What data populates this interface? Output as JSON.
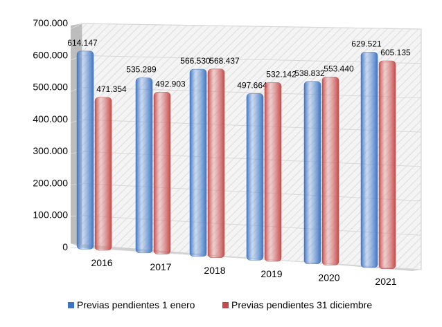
{
  "chart_data": {
    "type": "bar",
    "categories": [
      "2016",
      "2017",
      "2018",
      "2019",
      "2020",
      "2021"
    ],
    "series": [
      {
        "name": "Previas pendientes 1 enero",
        "color": "#3d74c4",
        "values": [
          614147,
          535289,
          566530,
          497664,
          538832,
          629521
        ],
        "labels": [
          "614.147",
          "535.289",
          "566.530",
          "497.664",
          "538.832",
          "629.521"
        ]
      },
      {
        "name": "Previas pendientes 31 diciembre",
        "color": "#c44a48",
        "values": [
          471354,
          492903,
          568437,
          532142,
          553440,
          605135
        ],
        "labels": [
          "471.354",
          "492.903",
          "568.437",
          "532.142",
          "553.440",
          "605.135"
        ]
      }
    ],
    "ylim": [
      0,
      700000
    ],
    "yticks": [
      "0",
      "100.000",
      "200.000",
      "300.000",
      "400.000",
      "500.000",
      "600.000",
      "700.000"
    ],
    "grid": true,
    "legend": "bottom",
    "style": "3d-perspective"
  }
}
